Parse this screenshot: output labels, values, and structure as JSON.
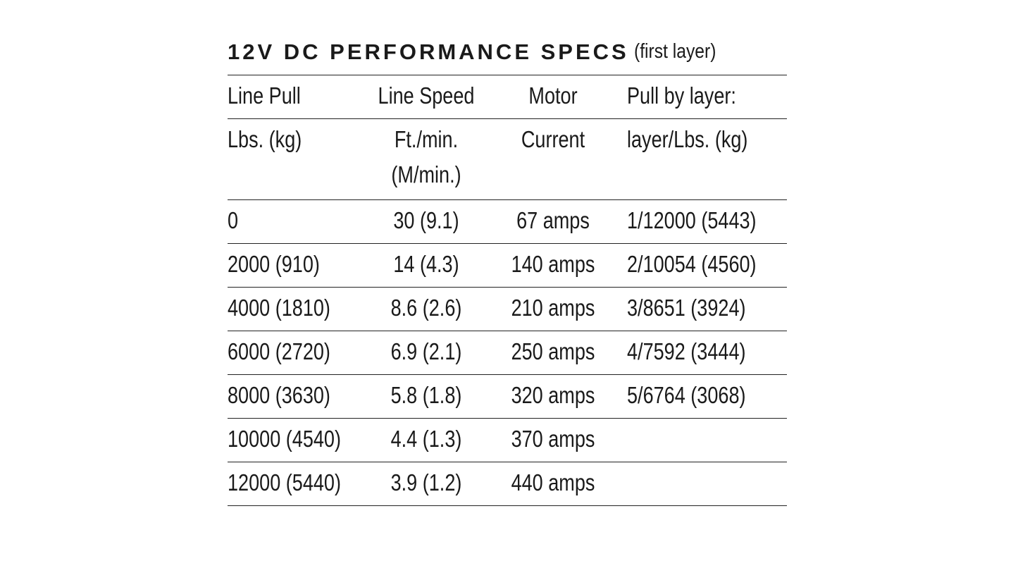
{
  "header": {
    "title": "12V DC PERFORMANCE SPECS",
    "subtitle": "(first layer)"
  },
  "table": {
    "header_rows": [
      [
        "Line Pull",
        "Line Speed",
        "Motor",
        "Pull by layer:"
      ],
      [
        "Lbs. (kg)",
        "Ft./min.\n(M/min.)",
        "Current",
        "layer/Lbs. (kg)"
      ]
    ],
    "rows": [
      [
        "0",
        "30 (9.1)",
        "67 amps",
        "1/12000 (5443)"
      ],
      [
        "2000 (910)",
        "14 (4.3)",
        "140 amps",
        "2/10054 (4560)"
      ],
      [
        "4000 (1810)",
        "8.6 (2.6)",
        "210 amps",
        "3/8651 (3924)"
      ],
      [
        "6000 (2720)",
        "6.9 (2.1)",
        "250 amps",
        "4/7592 (3444)"
      ],
      [
        "8000 (3630)",
        "5.8 (1.8)",
        "320 amps",
        "5/6764 (3068)"
      ],
      [
        "10000 (4540)",
        "4.4 (1.3)",
        "370 amps",
        null
      ],
      [
        "12000 (5440)",
        "3.9 (1.2)",
        "440 amps",
        null
      ]
    ]
  }
}
